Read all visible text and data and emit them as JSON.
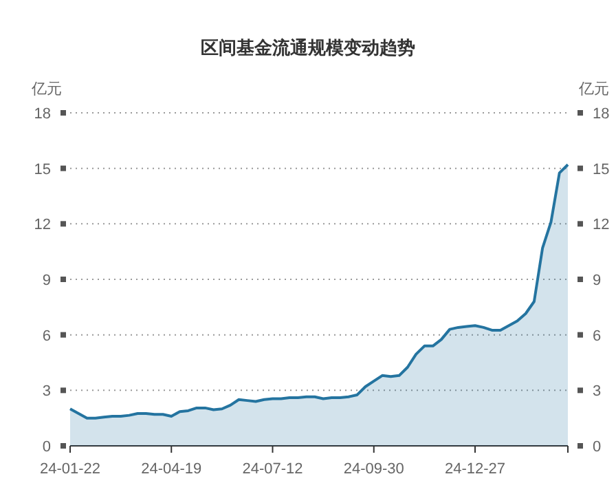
{
  "chart_data": {
    "type": "area",
    "title": "区间基金流通规模变动趋势",
    "ylabel": "亿元",
    "y2label": "亿元",
    "categories": [
      "24-01-22",
      null,
      null,
      null,
      null,
      null,
      null,
      null,
      null,
      null,
      null,
      null,
      "24-04-19",
      null,
      null,
      null,
      null,
      null,
      null,
      null,
      null,
      null,
      null,
      null,
      "24-07-12",
      null,
      null,
      null,
      null,
      null,
      null,
      null,
      null,
      null,
      null,
      null,
      "24-09-30",
      null,
      null,
      null,
      null,
      null,
      null,
      null,
      null,
      null,
      null,
      null,
      "24-12-27",
      null,
      null,
      null,
      null,
      null,
      null,
      null,
      null,
      null,
      null,
      null
    ],
    "series": [
      {
        "color": "#2474a0",
        "values": [
          2.0,
          1.75,
          1.5,
          1.5,
          1.55,
          1.6,
          1.6,
          1.65,
          1.75,
          1.75,
          1.7,
          1.7,
          1.6,
          1.85,
          1.9,
          2.05,
          2.05,
          1.95,
          2.0,
          2.2,
          2.5,
          2.45,
          2.4,
          2.5,
          2.55,
          2.55,
          2.6,
          2.6,
          2.65,
          2.65,
          2.55,
          2.6,
          2.6,
          2.65,
          2.75,
          3.2,
          3.5,
          3.8,
          3.75,
          3.8,
          4.25,
          4.95,
          5.4,
          5.4,
          5.75,
          6.3,
          6.4,
          6.45,
          6.5,
          6.4,
          6.25,
          6.25,
          6.5,
          6.75,
          7.15,
          7.8,
          10.7,
          12.1,
          14.75,
          15.2
        ]
      }
    ],
    "ylim": [
      0,
      18
    ],
    "yticks": [
      0,
      3,
      6,
      9,
      12,
      15,
      18
    ],
    "y2lim": [
      0,
      18
    ],
    "y2ticks": [
      0,
      3,
      6,
      9,
      12,
      15,
      18
    ],
    "grid": "y"
  }
}
